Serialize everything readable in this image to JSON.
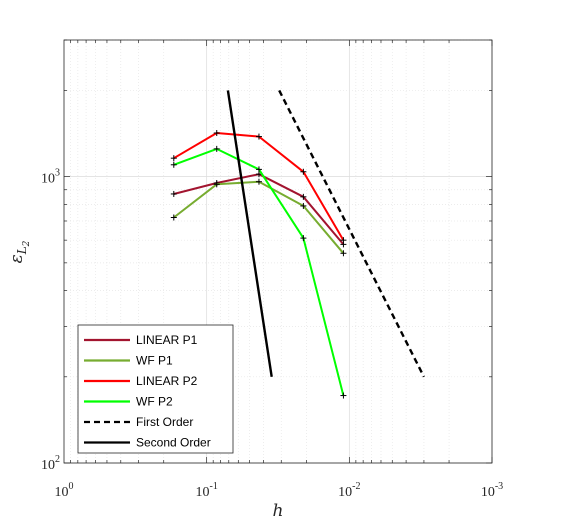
{
  "chart_data": {
    "type": "line",
    "x_scale": "log",
    "y_scale": "log",
    "x_reversed": true,
    "xlim": [
      1,
      0.001
    ],
    "ylim": [
      100,
      3000
    ],
    "x_ticks": [
      1,
      0.1,
      0.01,
      0.001
    ],
    "x_tick_labels": [
      {
        "base": "10",
        "exp": "0"
      },
      {
        "base": "10",
        "exp": "-1"
      },
      {
        "base": "10",
        "exp": "-2"
      },
      {
        "base": "10",
        "exp": "-3"
      }
    ],
    "y_ticks": [
      100,
      1000
    ],
    "y_tick_labels": [
      {
        "base": "10",
        "exp": "2"
      },
      {
        "base": "10",
        "exp": "3"
      }
    ],
    "xlabel": "h",
    "ylabel": {
      "main": "ε",
      "sub": "L",
      "subsub": "2"
    },
    "grid": true,
    "minor_grid": true,
    "legend_position": "bottom-left",
    "x": [
      0.17,
      0.085,
      0.043,
      0.021,
      0.011
    ],
    "series": [
      {
        "name": "LINEAR P1",
        "color": "#a2142f",
        "style": "solid",
        "markers": true,
        "x": [
          0.17,
          0.085,
          0.043,
          0.021,
          0.011
        ],
        "y": [
          870,
          950,
          1020,
          850,
          580
        ]
      },
      {
        "name": "WF P1",
        "color": "#77ac30",
        "style": "solid",
        "markers": true,
        "x": [
          0.17,
          0.085,
          0.043,
          0.021,
          0.011
        ],
        "y": [
          720,
          940,
          960,
          790,
          540
        ]
      },
      {
        "name": "LINEAR P2",
        "color": "#ff0000",
        "style": "solid",
        "markers": true,
        "x": [
          0.17,
          0.085,
          0.043,
          0.021,
          0.011
        ],
        "y": [
          1160,
          1420,
          1380,
          1040,
          600
        ]
      },
      {
        "name": "WF P2",
        "color": "#00ff00",
        "style": "solid",
        "markers": true,
        "x": [
          0.17,
          0.085,
          0.043,
          0.021,
          0.011
        ],
        "y": [
          1100,
          1250,
          1060,
          610,
          172
        ]
      },
      {
        "name": "First Order",
        "color": "#000000",
        "style": "dashed",
        "markers": false,
        "x": [
          0.031,
          0.003
        ],
        "y": [
          2000,
          200
        ]
      },
      {
        "name": "Second Order",
        "color": "#000000",
        "style": "solid",
        "markers": false,
        "x": [
          0.071,
          0.035
        ],
        "y": [
          2000,
          200
        ]
      }
    ]
  }
}
